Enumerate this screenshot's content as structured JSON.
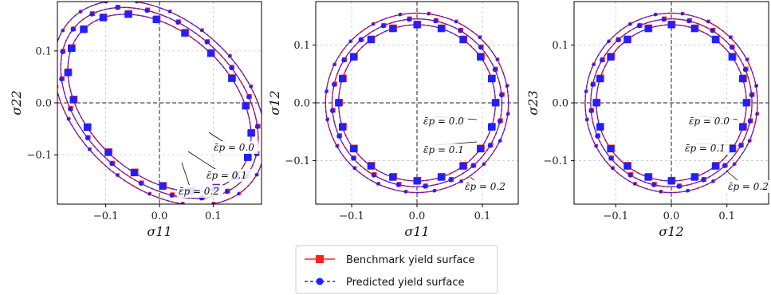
{
  "legend": {
    "entries": [
      {
        "label": "Benchmark yield surface",
        "color": "#ff2020",
        "marker": "square",
        "linestyle": "solid"
      },
      {
        "label": "Predicted yield surface",
        "color": "#2020ff",
        "marker": "circle",
        "linestyle": "dashed"
      }
    ]
  },
  "chart_data": [
    {
      "type": "line",
      "xlabel": "σ11",
      "ylabel": "σ22",
      "xlim": [
        -0.19,
        0.19
      ],
      "ylim": [
        -0.195,
        0.195
      ],
      "xticks": [
        -0.1,
        0.0,
        0.1
      ],
      "xtick_labels": [
        "−0.1",
        "0.0",
        "0.1"
      ],
      "yticks": [
        -0.1,
        0.0,
        0.1
      ],
      "ytick_labels": [
        "−0.1",
        "0.0",
        "0.1"
      ],
      "grid": true,
      "curves": [
        {
          "kind": "ellipse",
          "a": 0.135,
          "b": 0.2,
          "angle_deg": 45,
          "strain": "ε̄p = 0.0"
        },
        {
          "kind": "ellipse",
          "a": 0.146,
          "b": 0.215,
          "angle_deg": 45,
          "strain": "ε̄p = 0.1"
        },
        {
          "kind": "ellipse",
          "a": 0.157,
          "b": 0.23,
          "angle_deg": 45,
          "strain": "ε̄p = 0.2"
        }
      ],
      "annotations": [
        "ε̄p = 0.0",
        "ε̄p = 0.1",
        "ε̄p = 0.2"
      ],
      "series": [
        {
          "name": "Benchmark yield surface",
          "color": "#ff2020"
        },
        {
          "name": "Predicted yield surface",
          "color": "#2020ff"
        }
      ]
    },
    {
      "type": "line",
      "xlabel": "σ11",
      "ylabel": "σ12",
      "xlim": [
        -0.155,
        0.155
      ],
      "ylim": [
        -0.175,
        0.175
      ],
      "xticks": [
        -0.1,
        0.0,
        0.1
      ],
      "xtick_labels": [
        "−0.1",
        "0.0",
        "0.1"
      ],
      "yticks": [
        -0.1,
        0.0,
        0.1
      ],
      "ytick_labels": [
        "−0.1",
        "0.0",
        "0.1"
      ],
      "grid": true,
      "curves": [
        {
          "kind": "ellipse",
          "a": 0.12,
          "b": 0.135,
          "angle_deg": 0,
          "strain": "ε̄p = 0.0"
        },
        {
          "kind": "ellipse",
          "a": 0.13,
          "b": 0.145,
          "angle_deg": 0,
          "strain": "ε̄p = 0.1"
        },
        {
          "kind": "ellipse",
          "a": 0.14,
          "b": 0.155,
          "angle_deg": 0,
          "strain": "ε̄p = 0.2"
        }
      ],
      "annotations": [
        "ε̄p = 0.0",
        "ε̄p = 0.1",
        "ε̄p = 0.2"
      ],
      "series": [
        {
          "name": "Benchmark yield surface",
          "color": "#ff2020"
        },
        {
          "name": "Predicted yield surface",
          "color": "#2020ff"
        }
      ]
    },
    {
      "type": "line",
      "xlabel": "σ12",
      "ylabel": "σ23",
      "xlim": [
        -0.175,
        0.175
      ],
      "ylim": [
        -0.175,
        0.175
      ],
      "xticks": [
        -0.1,
        0.0,
        0.1
      ],
      "xtick_labels": [
        "−0.1",
        "0.0",
        "0.1"
      ],
      "yticks": [
        -0.1,
        0.0,
        0.1
      ],
      "ytick_labels": [
        "−0.1",
        "0.0",
        "0.1"
      ],
      "grid": true,
      "curves": [
        {
          "kind": "ellipse",
          "a": 0.135,
          "b": 0.135,
          "angle_deg": 0,
          "strain": "ε̄p = 0.0"
        },
        {
          "kind": "ellipse",
          "a": 0.145,
          "b": 0.145,
          "angle_deg": 0,
          "strain": "ε̄p = 0.1"
        },
        {
          "kind": "ellipse",
          "a": 0.155,
          "b": 0.155,
          "angle_deg": 0,
          "strain": "ε̄p = 0.2"
        }
      ],
      "annotations": [
        "ε̄p = 0.0",
        "ε̄p = 0.1",
        "ε̄p = 0.2"
      ],
      "series": [
        {
          "name": "Benchmark yield surface",
          "color": "#ff2020"
        },
        {
          "name": "Predicted yield surface",
          "color": "#2020ff"
        }
      ]
    }
  ]
}
